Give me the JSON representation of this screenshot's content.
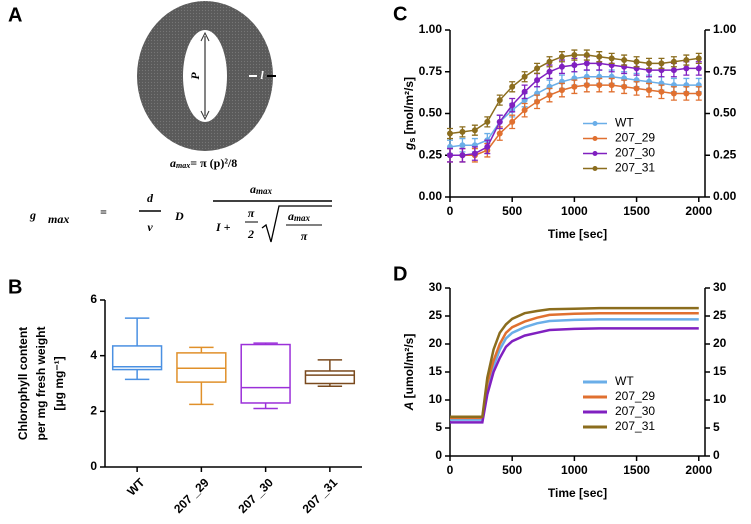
{
  "diagram": {
    "label": "A",
    "pore_label": "P",
    "length_label": "l",
    "area": {
      "symbol": "a",
      "sub": "max",
      "rest": "= π (p)²/8"
    },
    "formula": {
      "lhs": "g",
      "lhs_sub": "max",
      "eq": "=",
      "d": "d",
      "v": "v",
      "D": "D",
      "a_num": "a",
      "a_num_sub": "max",
      "l": "I +",
      "pi": "π",
      "two": "2",
      "a_den": "a",
      "a_den_sub": "max",
      "pi_den": "π"
    }
  },
  "chart_data": [
    {
      "type": "box",
      "panel_label": "B",
      "ylabel_lines": [
        "Chlorophyll content",
        "per mg fresh weight",
        "[μg  mg⁻¹]"
      ],
      "categories": [
        "WT",
        "207 _29",
        "207 _30",
        "207 _31"
      ],
      "colors": [
        "#4a90e2",
        "#e0902a",
        "#9b30d9",
        "#7a4a1e"
      ],
      "min": [
        3.15,
        2.25,
        2.1,
        2.9
      ],
      "q1": [
        3.5,
        3.05,
        2.3,
        3.0
      ],
      "median": [
        3.6,
        3.55,
        2.85,
        3.3
      ],
      "q3": [
        4.35,
        4.1,
        4.4,
        3.45
      ],
      "max": [
        5.35,
        4.3,
        4.45,
        3.85
      ],
      "ylim": [
        0,
        6
      ],
      "yticks": [
        0,
        2,
        4,
        6
      ]
    },
    {
      "type": "line",
      "panel_label": "C",
      "xlabel": "Time [sec]",
      "ylabel": {
        "symbol": "g",
        "sub": "s",
        "unit": " [mol/m²/s]"
      },
      "x": [
        0,
        100,
        200,
        300,
        400,
        500,
        600,
        700,
        800,
        900,
        1000,
        1100,
        1200,
        1300,
        1400,
        1500,
        1600,
        1700,
        1800,
        1900,
        2000
      ],
      "markers": true,
      "legend": "center-right",
      "series": [
        {
          "name": "WT",
          "color": "#6aaee8",
          "values": [
            0.3,
            0.31,
            0.31,
            0.34,
            0.45,
            0.52,
            0.58,
            0.62,
            0.66,
            0.69,
            0.71,
            0.72,
            0.72,
            0.72,
            0.71,
            0.7,
            0.69,
            0.68,
            0.67,
            0.67,
            0.67
          ],
          "errors": [
            0.04,
            0.04,
            0.04,
            0.04,
            0.04,
            0.04,
            0.04,
            0.04,
            0.04,
            0.04,
            0.04,
            0.04,
            0.04,
            0.04,
            0.04,
            0.04,
            0.04,
            0.04,
            0.04,
            0.04,
            0.04
          ]
        },
        {
          "name": "207_29",
          "color": "#e07030",
          "values": [
            0.25,
            0.25,
            0.25,
            0.28,
            0.38,
            0.45,
            0.52,
            0.57,
            0.61,
            0.64,
            0.66,
            0.67,
            0.67,
            0.67,
            0.66,
            0.65,
            0.64,
            0.63,
            0.62,
            0.62,
            0.62
          ],
          "errors": [
            0.04,
            0.04,
            0.04,
            0.04,
            0.04,
            0.04,
            0.04,
            0.04,
            0.04,
            0.04,
            0.04,
            0.04,
            0.04,
            0.04,
            0.04,
            0.04,
            0.04,
            0.04,
            0.04,
            0.04,
            0.04
          ]
        },
        {
          "name": "207_30",
          "color": "#8020c0",
          "values": [
            0.25,
            0.25,
            0.26,
            0.3,
            0.45,
            0.55,
            0.63,
            0.7,
            0.75,
            0.78,
            0.79,
            0.8,
            0.8,
            0.79,
            0.78,
            0.77,
            0.76,
            0.76,
            0.76,
            0.77,
            0.77
          ],
          "errors": [
            0.04,
            0.04,
            0.04,
            0.04,
            0.04,
            0.04,
            0.04,
            0.04,
            0.04,
            0.04,
            0.04,
            0.04,
            0.04,
            0.04,
            0.04,
            0.04,
            0.04,
            0.04,
            0.04,
            0.04,
            0.04
          ]
        },
        {
          "name": "207_31",
          "color": "#8b6d1e",
          "values": [
            0.38,
            0.39,
            0.4,
            0.45,
            0.58,
            0.66,
            0.72,
            0.77,
            0.81,
            0.84,
            0.85,
            0.85,
            0.84,
            0.83,
            0.82,
            0.81,
            0.8,
            0.8,
            0.81,
            0.82,
            0.83
          ],
          "errors": [
            0.03,
            0.03,
            0.03,
            0.03,
            0.03,
            0.03,
            0.03,
            0.03,
            0.03,
            0.03,
            0.03,
            0.03,
            0.03,
            0.03,
            0.03,
            0.03,
            0.03,
            0.03,
            0.03,
            0.03,
            0.03
          ]
        }
      ],
      "xlim": [
        0,
        2050
      ],
      "xticks": [
        0,
        500,
        1000,
        1500,
        2000
      ],
      "ylim": [
        0,
        1
      ],
      "yticks": [
        {
          "value": 0,
          "label": "0.00"
        },
        {
          "value": 0.25,
          "label": "0.25"
        },
        {
          "value": 0.5,
          "label": "0.50"
        },
        {
          "value": 0.75,
          "label": "0.75"
        },
        {
          "value": 1,
          "label": "1.00"
        }
      ],
      "y2lim": [
        0,
        1
      ],
      "y2ticks": [
        {
          "value": 0,
          "label": "0.00"
        },
        {
          "value": 0.25,
          "label": "0.25"
        },
        {
          "value": 0.5,
          "label": "0.50"
        },
        {
          "value": 0.75,
          "label": "0.75"
        },
        {
          "value": 1,
          "label": "1.00"
        }
      ]
    },
    {
      "type": "line",
      "panel_label": "D",
      "xlabel": "Time [sec]",
      "ylabel": {
        "symbol": "A",
        "sub": "",
        "unit": " [umol/m²/s]"
      },
      "x": [
        0,
        100,
        200,
        260,
        300,
        350,
        400,
        450,
        500,
        600,
        700,
        800,
        1000,
        1200,
        1400,
        1600,
        1800,
        2000
      ],
      "markers": false,
      "legend": "center-right",
      "series": [
        {
          "name": "WT",
          "color": "#6aaee8",
          "values": [
            6.5,
            6.5,
            6.5,
            6.5,
            12,
            16,
            19,
            21,
            22,
            23,
            23.7,
            24.1,
            24.3,
            24.4,
            24.4,
            24.4,
            24.4,
            24.4
          ]
        },
        {
          "name": "207_29",
          "color": "#e07030",
          "values": [
            6.8,
            6.8,
            6.8,
            6.8,
            13,
            17,
            20,
            22,
            23,
            24,
            24.7,
            25.2,
            25.4,
            25.5,
            25.5,
            25.5,
            25.5,
            25.5
          ]
        },
        {
          "name": "207_30",
          "color": "#8020c0",
          "values": [
            6.0,
            6.0,
            6.0,
            6.0,
            11,
            15,
            17.5,
            19.5,
            20.5,
            21.5,
            22,
            22.5,
            22.7,
            22.8,
            22.8,
            22.8,
            22.8,
            22.8
          ]
        },
        {
          "name": "207_31",
          "color": "#8b6d1e",
          "values": [
            7.0,
            7.0,
            7.0,
            7.0,
            14,
            19,
            22,
            23.5,
            24.5,
            25.5,
            25.9,
            26.2,
            26.3,
            26.4,
            26.4,
            26.4,
            26.4,
            26.4
          ]
        }
      ],
      "xlim": [
        0,
        2050
      ],
      "xticks": [
        0,
        500,
        1000,
        1500,
        2000
      ],
      "ylim": [
        0,
        30
      ],
      "yticks": [
        0,
        5,
        10,
        15,
        20,
        25,
        30
      ],
      "y2lim": [
        0,
        30
      ],
      "y2ticks": [
        0,
        5,
        10,
        15,
        20,
        25,
        30
      ]
    }
  ]
}
